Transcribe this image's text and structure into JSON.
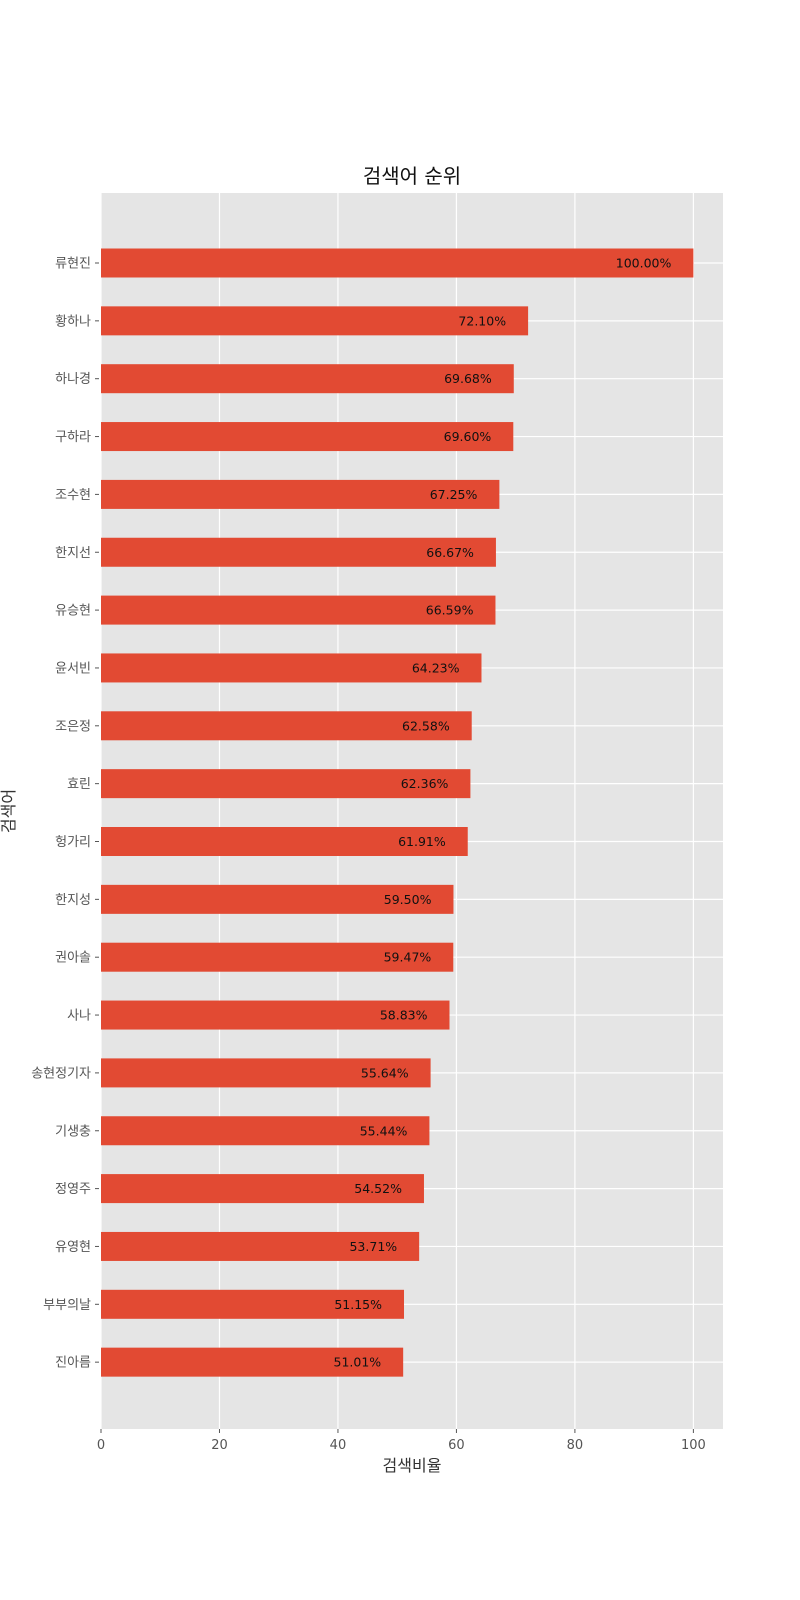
{
  "chart_data": {
    "type": "bar",
    "orientation": "horizontal",
    "title": "검색어 순위",
    "xlabel": "검색비율",
    "ylabel": "검색어",
    "xlim": [
      0,
      105
    ],
    "xticks": [
      0,
      20,
      40,
      60,
      80,
      100
    ],
    "grid": true,
    "legend": "none",
    "categories": [
      "류현진",
      "황하나",
      "하나경",
      "구하라",
      "조수현",
      "한지선",
      "유승현",
      "윤서빈",
      "조은정",
      "효린",
      "헝가리",
      "한지성",
      "권아솔",
      "사나",
      "송현정기자",
      "기생충",
      "정영주",
      "유영현",
      "부부의날",
      "진아름"
    ],
    "values": [
      100.0,
      72.1,
      69.68,
      69.6,
      67.25,
      66.67,
      66.59,
      64.23,
      62.58,
      62.36,
      61.91,
      59.5,
      59.47,
      58.83,
      55.64,
      55.44,
      54.52,
      53.71,
      51.15,
      51.01
    ],
    "data_labels": [
      "100.00%",
      "72.10%",
      "69.68%",
      "69.60%",
      "67.25%",
      "66.67%",
      "66.59%",
      "64.23%",
      "62.58%",
      "62.36%",
      "61.91%",
      "59.50%",
      "59.47%",
      "58.83%",
      "55.64%",
      "55.44%",
      "54.52%",
      "53.71%",
      "51.15%",
      "51.01%"
    ],
    "colors": {
      "bar": "#E24A33",
      "plot_background": "#E5E5E5",
      "grid": "#FFFFFF"
    }
  }
}
